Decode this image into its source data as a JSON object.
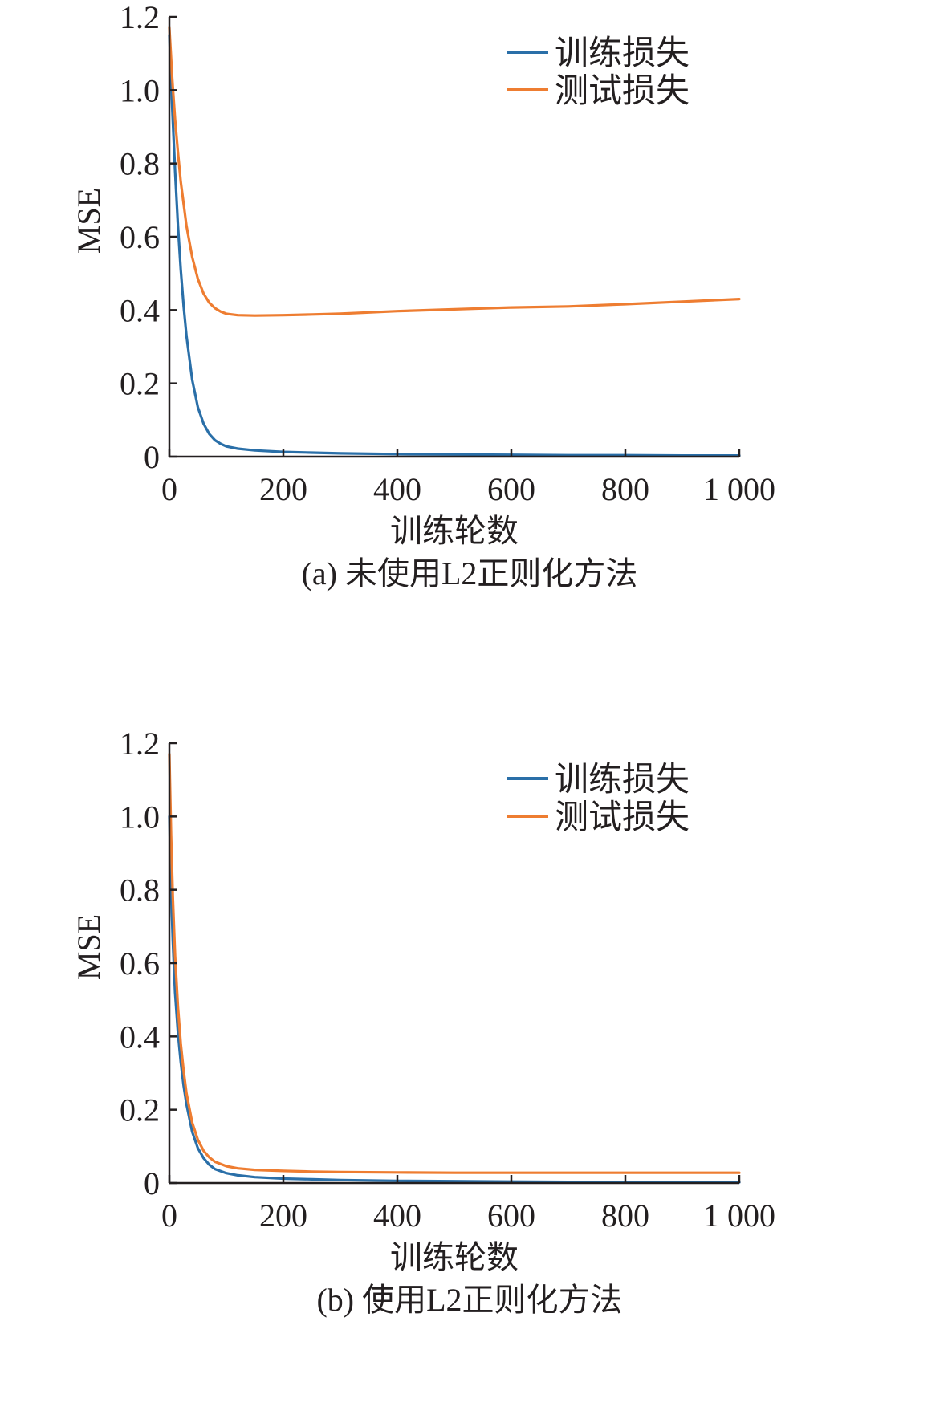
{
  "colors": {
    "train": "#2a6fa8",
    "test": "#ee7d31",
    "axis": "#231f20"
  },
  "chart_data": [
    {
      "type": "line",
      "caption": "(a) 未使用L2正则化方法",
      "xlabel": "训练轮数",
      "ylabel": "MSE",
      "xlim": [
        0,
        1000
      ],
      "ylim": [
        0,
        1.2
      ],
      "x_ticks": [
        0,
        200,
        400,
        600,
        800,
        1000
      ],
      "x_tick_labels": [
        "0",
        "200",
        "400",
        "600",
        "800",
        "1 000"
      ],
      "y_ticks": [
        0,
        0.2,
        0.4,
        0.6,
        0.8,
        1.0,
        1.2
      ],
      "y_tick_labels": [
        "0",
        "0.2",
        "0.4",
        "0.6",
        "0.8",
        "1.0",
        "1.2"
      ],
      "grid": false,
      "legend_position": "top-right",
      "series": [
        {
          "name": "训练损失",
          "color": "#2a6fa8",
          "x": [
            0,
            5,
            10,
            15,
            20,
            25,
            30,
            40,
            50,
            60,
            70,
            80,
            90,
            100,
            120,
            150,
            200,
            250,
            300,
            400,
            500,
            600,
            700,
            800,
            900,
            1000
          ],
          "values": [
            1.15,
            0.95,
            0.78,
            0.63,
            0.51,
            0.41,
            0.33,
            0.21,
            0.135,
            0.09,
            0.062,
            0.045,
            0.035,
            0.028,
            0.022,
            0.017,
            0.013,
            0.011,
            0.009,
            0.007,
            0.006,
            0.005,
            0.004,
            0.004,
            0.003,
            0.003
          ]
        },
        {
          "name": "测试损失",
          "color": "#ee7d31",
          "x": [
            0,
            5,
            10,
            15,
            20,
            30,
            40,
            50,
            60,
            70,
            80,
            90,
            100,
            120,
            150,
            200,
            250,
            300,
            400,
            500,
            600,
            700,
            800,
            900,
            1000
          ],
          "values": [
            1.17,
            1.03,
            0.92,
            0.83,
            0.75,
            0.63,
            0.545,
            0.485,
            0.445,
            0.42,
            0.405,
            0.396,
            0.39,
            0.386,
            0.385,
            0.386,
            0.388,
            0.39,
            0.397,
            0.402,
            0.407,
            0.41,
            0.416,
            0.423,
            0.43
          ]
        }
      ]
    },
    {
      "type": "line",
      "caption": "(b) 使用L2正则化方法",
      "xlabel": "训练轮数",
      "ylabel": "MSE",
      "xlim": [
        0,
        1000
      ],
      "ylim": [
        0,
        1.2
      ],
      "x_ticks": [
        0,
        200,
        400,
        600,
        800,
        1000
      ],
      "x_tick_labels": [
        "0",
        "200",
        "400",
        "600",
        "800",
        "1 000"
      ],
      "y_ticks": [
        0,
        0.2,
        0.4,
        0.6,
        0.8,
        1.0,
        1.2
      ],
      "y_tick_labels": [
        "0",
        "0.2",
        "0.4",
        "0.6",
        "0.8",
        "1.0",
        "1.2"
      ],
      "grid": false,
      "legend_position": "top-right",
      "series": [
        {
          "name": "训练损失",
          "color": "#2a6fa8",
          "x": [
            0,
            3,
            6,
            10,
            15,
            20,
            25,
            30,
            40,
            50,
            60,
            70,
            80,
            100,
            120,
            150,
            200,
            250,
            300,
            400,
            500,
            600,
            700,
            800,
            900,
            1000
          ],
          "values": [
            1.0,
            0.8,
            0.66,
            0.52,
            0.41,
            0.33,
            0.265,
            0.215,
            0.14,
            0.095,
            0.068,
            0.05,
            0.038,
            0.027,
            0.021,
            0.016,
            0.012,
            0.01,
            0.008,
            0.006,
            0.005,
            0.004,
            0.003,
            0.003,
            0.003,
            0.002
          ]
        },
        {
          "name": "测试损失",
          "color": "#ee7d31",
          "x": [
            0,
            3,
            6,
            10,
            15,
            20,
            25,
            30,
            40,
            50,
            60,
            70,
            80,
            100,
            120,
            150,
            200,
            250,
            300,
            400,
            500,
            600,
            700,
            800,
            900,
            1000
          ],
          "values": [
            1.17,
            0.95,
            0.78,
            0.62,
            0.48,
            0.38,
            0.305,
            0.245,
            0.165,
            0.118,
            0.088,
            0.07,
            0.058,
            0.046,
            0.04,
            0.036,
            0.033,
            0.031,
            0.03,
            0.029,
            0.028,
            0.028,
            0.028,
            0.028,
            0.028,
            0.028
          ]
        }
      ]
    }
  ]
}
